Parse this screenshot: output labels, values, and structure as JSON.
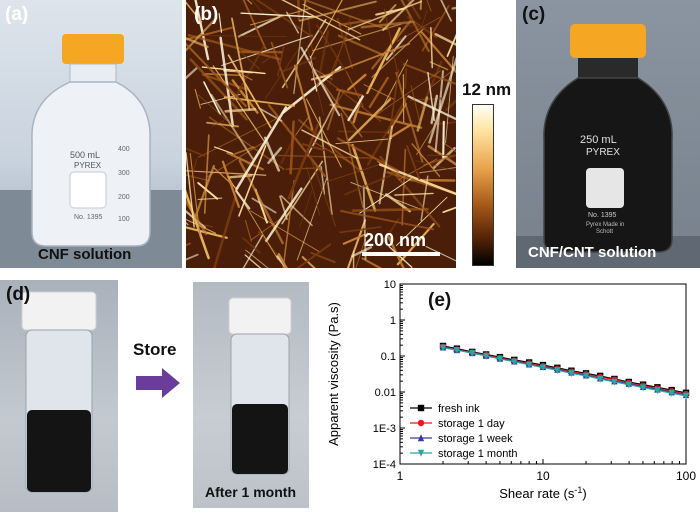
{
  "panels": {
    "a": {
      "label": "(a)",
      "caption": "CNF solution",
      "bottle_text": [
        "500 mL",
        "PYREX",
        "400",
        "300",
        "200",
        "100",
        "No. 1395"
      ]
    },
    "b": {
      "label": "(b)",
      "scalebar_label": "200 nm",
      "colorbar_max": "12 nm"
    },
    "c": {
      "label": "(c)",
      "caption": "CNF/CNT solution",
      "bottle_text": [
        "250 mL",
        "PYREX",
        "No. 1395",
        "Pyrex Made in",
        "Schott"
      ]
    },
    "d": {
      "label": "(d)",
      "arrow_label": "Store",
      "after_caption": "After 1 month"
    },
    "e": {
      "label": "(e)"
    }
  },
  "colors": {
    "cap_orange": "#f5a623",
    "arrow_purple": "#6a3d9a",
    "black_ink": "#141414",
    "afm_dark": "#3a1706",
    "afm_bright": "#fff0c8"
  },
  "chart_data": {
    "type": "line",
    "xlabel": "Shear rate (s",
    "xlabel_sup": "-1",
    "xlabel_close": ")",
    "ylabel": "Apparent viscosity (Pa.s)",
    "x_scale": "log",
    "y_scale": "log",
    "xlim": [
      1,
      100
    ],
    "ylim": [
      0.0001,
      10
    ],
    "x_ticks": [
      {
        "value": 1,
        "label": "1"
      },
      {
        "value": 10,
        "label": "10"
      },
      {
        "value": 100,
        "label": "100"
      }
    ],
    "y_ticks": [
      {
        "value": 10,
        "label": "10"
      },
      {
        "value": 1,
        "label": "1"
      },
      {
        "value": 0.1,
        "label": "0.1"
      },
      {
        "value": 0.01,
        "label": "0.01"
      },
      {
        "value": 0.001,
        "label": "1E-3"
      },
      {
        "value": 0.0001,
        "label": "1E-4"
      }
    ],
    "legend_position": "lower-left",
    "x": [
      2.0,
      2.5,
      3.2,
      4.0,
      5.0,
      6.3,
      8.0,
      10.0,
      12.6,
      15.8,
      20.0,
      25.1,
      31.6,
      39.8,
      50.1,
      63.1,
      79.4,
      100.0
    ],
    "series": [
      {
        "name": "fresh ink",
        "color": "#000000",
        "marker": "square",
        "values": [
          0.19,
          0.16,
          0.13,
          0.11,
          0.093,
          0.078,
          0.066,
          0.056,
          0.047,
          0.039,
          0.033,
          0.028,
          0.023,
          0.019,
          0.016,
          0.0135,
          0.0113,
          0.0095
        ]
      },
      {
        "name": "storage 1 day",
        "color": "#e41a1c",
        "marker": "circle",
        "values": [
          0.18,
          0.15,
          0.125,
          0.105,
          0.088,
          0.074,
          0.062,
          0.052,
          0.044,
          0.037,
          0.031,
          0.026,
          0.022,
          0.018,
          0.015,
          0.0125,
          0.0105,
          0.0088
        ]
      },
      {
        "name": "storage 1 week",
        "color": "#3b3b9e",
        "marker": "triangle-up",
        "values": [
          0.175,
          0.148,
          0.122,
          0.102,
          0.085,
          0.071,
          0.059,
          0.05,
          0.042,
          0.035,
          0.029,
          0.024,
          0.02,
          0.017,
          0.014,
          0.0118,
          0.0099,
          0.0083
        ]
      },
      {
        "name": "storage 1 month",
        "color": "#2aa7a0",
        "marker": "triangle-down",
        "values": [
          0.17,
          0.145,
          0.12,
          0.1,
          0.083,
          0.069,
          0.057,
          0.048,
          0.04,
          0.033,
          0.028,
          0.023,
          0.019,
          0.016,
          0.0133,
          0.0111,
          0.0093,
          0.0078
        ]
      }
    ]
  }
}
